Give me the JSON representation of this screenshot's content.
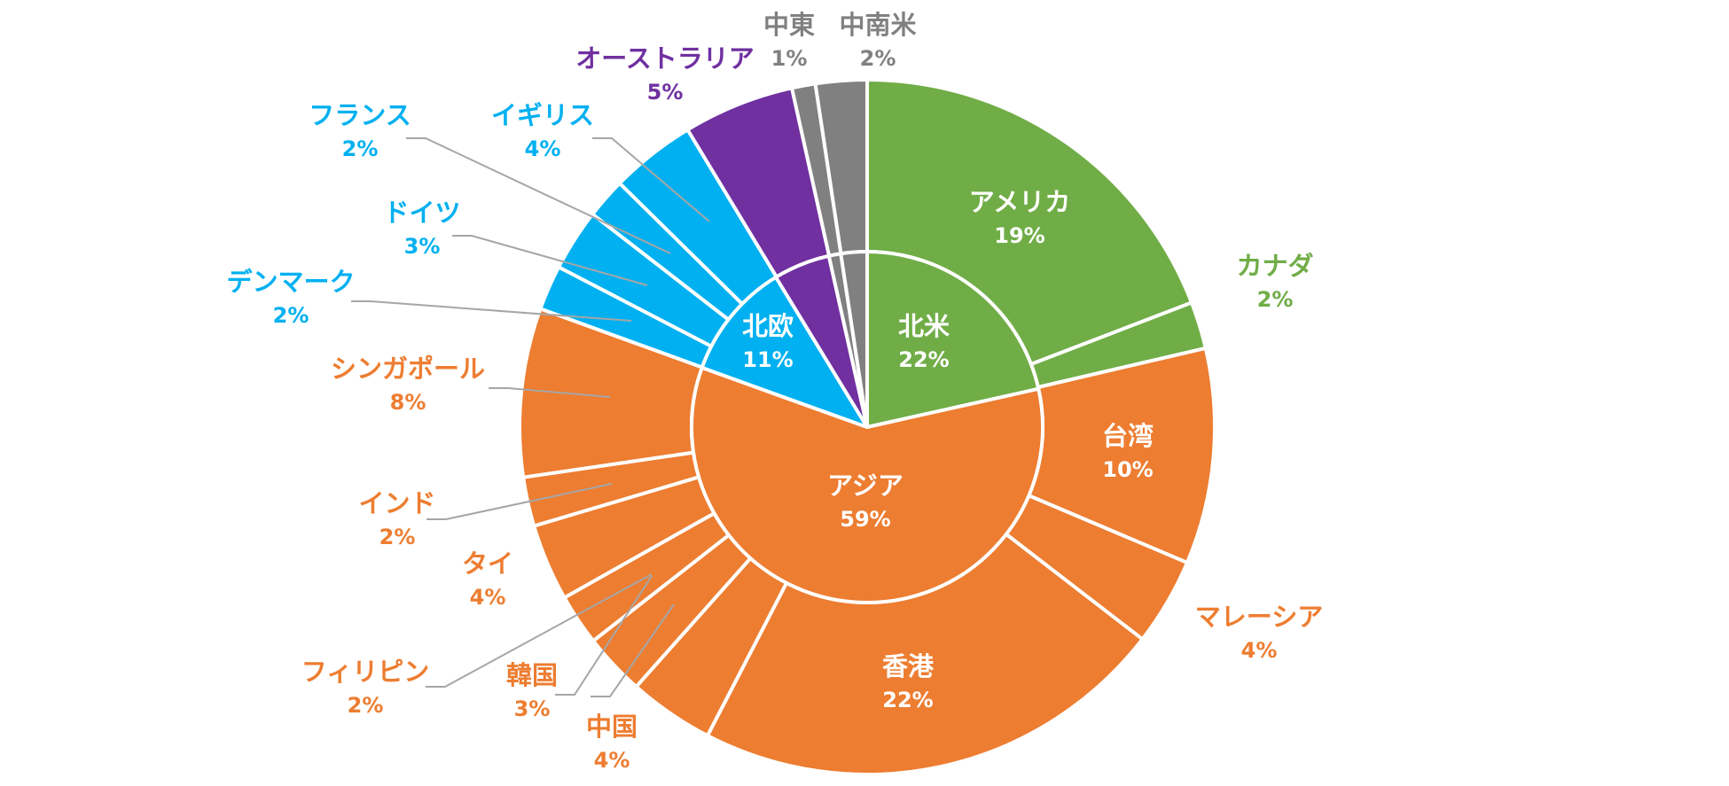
{
  "chart_data": {
    "type": "pie",
    "subtype": "sunburst-donut",
    "colors": {
      "北米": "#70ad47",
      "アジア": "#ed7d31",
      "北欧": "#00b0f0",
      "オーストラリア": "#7030a0",
      "中東": "#808080",
      "中南米": "#808080",
      "leader_line": "#a6a6a6",
      "divider": "#ffffff"
    },
    "inner": [
      {
        "name": "北米",
        "pct": "22%",
        "value": 21.5,
        "color": "#70ad47"
      },
      {
        "name": "アジア",
        "pct": "59%",
        "value": 59,
        "color": "#ed7d31"
      },
      {
        "name": "北欧",
        "pct": "11%",
        "value": 10.8,
        "color": "#00b0f0"
      },
      {
        "name": "",
        "pct": "",
        "value": 5.2,
        "color": "#7030a0"
      },
      {
        "name": "",
        "pct": "",
        "value": 1.1,
        "color": "#808080"
      },
      {
        "name": "",
        "pct": "",
        "value": 2.4,
        "color": "#808080"
      }
    ],
    "outer": [
      {
        "name": "アメリカ",
        "pct": "19%",
        "value": 19.3,
        "color": "#70ad47",
        "label_color": "#ffffff"
      },
      {
        "name": "カナダ",
        "pct": "2%",
        "value": 2.2,
        "color": "#70ad47",
        "label_color": "#70ad47"
      },
      {
        "name": "台湾",
        "pct": "10%",
        "value": 10.1,
        "color": "#ed7d31",
        "label_color": "#ffffff"
      },
      {
        "name": "マレーシア",
        "pct": "4%",
        "value": 4.1,
        "color": "#ed7d31",
        "label_color": "#ed7d31"
      },
      {
        "name": "香港",
        "pct": "22%",
        "value": 22.3,
        "color": "#ed7d31",
        "label_color": "#ffffff"
      },
      {
        "name": "中国",
        "pct": "4%",
        "value": 4.0,
        "color": "#ed7d31",
        "label_color": "#ed7d31"
      },
      {
        "name": "韓国",
        "pct": "3%",
        "value": 2.9,
        "color": "#ed7d31",
        "label_color": "#ed7d31"
      },
      {
        "name": "フィリピン",
        "pct": "2%",
        "value": 2.4,
        "color": "#ed7d31",
        "label_color": "#ed7d31"
      },
      {
        "name": "タイ",
        "pct": "4%",
        "value": 3.6,
        "color": "#ed7d31",
        "label_color": "#ed7d31"
      },
      {
        "name": "インド",
        "pct": "2%",
        "value": 2.3,
        "color": "#ed7d31",
        "label_color": "#ed7d31"
      },
      {
        "name": "シンガポール",
        "pct": "8%",
        "value": 7.9,
        "color": "#ed7d31",
        "label_color": "#ed7d31"
      },
      {
        "name": "デンマーク",
        "pct": "2%",
        "value": 2.1,
        "color": "#00b0f0",
        "label_color": "#00b0f0"
      },
      {
        "name": "ドイツ",
        "pct": "3%",
        "value": 2.9,
        "color": "#00b0f0",
        "label_color": "#00b0f0"
      },
      {
        "name": "フランス",
        "pct": "2%",
        "value": 1.9,
        "color": "#00b0f0",
        "label_color": "#00b0f0"
      },
      {
        "name": "イギリス",
        "pct": "4%",
        "value": 4.0,
        "color": "#00b0f0",
        "label_color": "#00b0f0"
      },
      {
        "name": "オーストラリア",
        "pct": "5%",
        "value": 5.2,
        "color": "#7030a0",
        "label_color": "#7030a0"
      },
      {
        "name": "中東",
        "pct": "1%",
        "value": 1.1,
        "color": "#808080",
        "label_color": "#808080"
      },
      {
        "name": "中南米",
        "pct": "2%",
        "value": 2.4,
        "color": "#808080",
        "label_color": "#808080"
      }
    ]
  }
}
